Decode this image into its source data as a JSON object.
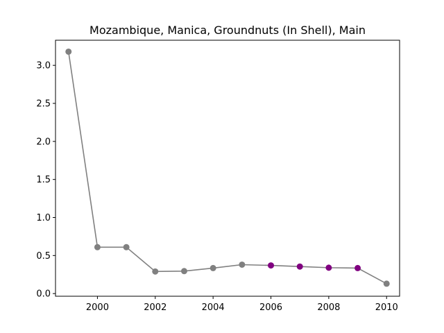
{
  "chart_data": {
    "type": "line",
    "title": "Mozambique, Manica, Groundnuts (In Shell), Main",
    "xlabel": "",
    "ylabel": "",
    "xlim": [
      1998.55,
      2010.45
    ],
    "ylim": [
      -0.035,
      3.33
    ],
    "xticks": [
      2000,
      2002,
      2004,
      2006,
      2008,
      2010
    ],
    "xtick_labels": [
      "2000",
      "2002",
      "2004",
      "2006",
      "2008",
      "2010"
    ],
    "yticks": [
      0.0,
      0.5,
      1.0,
      1.5,
      2.0,
      2.5,
      3.0
    ],
    "ytick_labels": [
      "0.0",
      "0.5",
      "1.0",
      "1.5",
      "2.0",
      "2.5",
      "3.0"
    ],
    "grid": false,
    "line_color": "#808080",
    "series": [
      {
        "x": [
          1999,
          2000,
          2001,
          2002,
          2003,
          2004,
          2005,
          2006,
          2007,
          2008,
          2009,
          2010
        ],
        "y": [
          3.18,
          0.61,
          0.61,
          0.29,
          0.295,
          0.335,
          0.38,
          0.37,
          0.355,
          0.34,
          0.335,
          0.13
        ],
        "point_colors": [
          "#808080",
          "#808080",
          "#808080",
          "#808080",
          "#808080",
          "#808080",
          "#808080",
          "#800080",
          "#800080",
          "#800080",
          "#800080",
          "#808080"
        ]
      }
    ]
  }
}
